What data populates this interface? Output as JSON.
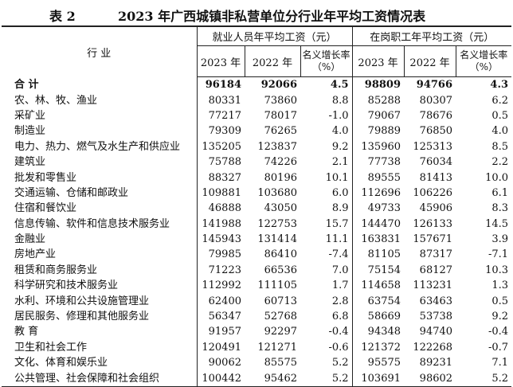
{
  "header": {
    "label": "表 2",
    "title": "2023 年广西城镇非私营单位分行业年平均工资情况表"
  },
  "table": {
    "industry_header": "行 业",
    "groups": [
      "就业人员年平均工资（元）",
      "在岗职工年平均工资（元）"
    ],
    "subheaders": [
      "2023 年",
      "2022 年",
      "名义增长率（%）",
      "2023 年",
      "2022 年",
      "名义增长率（%）"
    ],
    "rows": [
      [
        "合 计",
        "96184",
        "92066",
        "4.5",
        "98809",
        "94766",
        "4.3"
      ],
      [
        "农、林、牧、渔业",
        "80331",
        "73860",
        "8.8",
        "85288",
        "80307",
        "6.2"
      ],
      [
        "采矿业",
        "77217",
        "78017",
        "-1.0",
        "79067",
        "78676",
        "0.5"
      ],
      [
        "制造业",
        "79309",
        "76265",
        "4.0",
        "79889",
        "76850",
        "4.0"
      ],
      [
        "电力、热力、燃气及水生产和供应业",
        "135205",
        "123837",
        "9.2",
        "135960",
        "125313",
        "8.5"
      ],
      [
        "建筑业",
        "75788",
        "74226",
        "2.1",
        "77738",
        "76034",
        "2.2"
      ],
      [
        "批发和零售业",
        "88327",
        "80196",
        "10.1",
        "89555",
        "81413",
        "10.0"
      ],
      [
        "交通运输、仓储和邮政业",
        "109881",
        "103680",
        "6.0",
        "112696",
        "106226",
        "6.1"
      ],
      [
        "住宿和餐饮业",
        "46888",
        "43050",
        "8.9",
        "49733",
        "45906",
        "8.3"
      ],
      [
        "信息传输、软件和信息技术服务业",
        "141988",
        "122753",
        "15.7",
        "144470",
        "126133",
        "14.5"
      ],
      [
        "金融业",
        "145943",
        "131414",
        "11.1",
        "163831",
        "157671",
        "3.9"
      ],
      [
        "房地产业",
        "79985",
        "86410",
        "-7.4",
        "81105",
        "87317",
        "-7.1"
      ],
      [
        "租赁和商务服务业",
        "71223",
        "66536",
        "7.0",
        "75154",
        "68127",
        "10.3"
      ],
      [
        "科学研究和技术服务业",
        "112992",
        "111105",
        "1.7",
        "114658",
        "113231",
        "1.3"
      ],
      [
        "水利、环境和公共设施管理业",
        "62400",
        "60713",
        "2.8",
        "63754",
        "63463",
        "0.5"
      ],
      [
        "居民服务、修理和其他服务业",
        "56347",
        "52768",
        "6.8",
        "58669",
        "53738",
        "9.2"
      ],
      [
        "教 育",
        "91957",
        "92297",
        "-0.4",
        "94348",
        "94740",
        "-0.4"
      ],
      [
        "卫生和社会工作",
        "120491",
        "121271",
        "-0.6",
        "121372",
        "122268",
        "-0.7"
      ],
      [
        "文化、体育和娱乐业",
        "90062",
        "85575",
        "5.2",
        "95575",
        "89231",
        "7.1"
      ],
      [
        "公共管理、社会保障和社会组织",
        "100442",
        "95462",
        "5.2",
        "103691",
        "98602",
        "5.2"
      ]
    ]
  }
}
